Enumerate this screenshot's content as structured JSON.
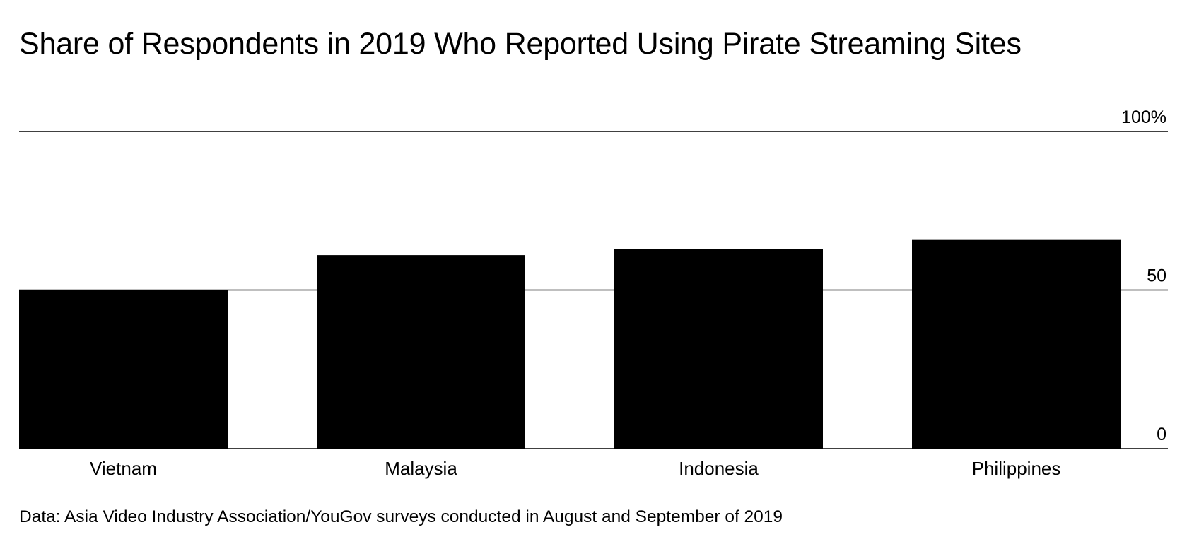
{
  "title": "Share of Respondents in 2019 Who Reported Using Pirate Streaming Sites",
  "source": "Data: Asia Video Industry Association/YouGov surveys conducted in August and September of 2019",
  "chart_data": {
    "type": "bar",
    "title": "Share of Respondents in 2019 Who Reported Using Pirate Streaming Sites",
    "xlabel": "",
    "ylabel": "",
    "categories": [
      "Vietnam",
      "Malaysia",
      "Indonesia",
      "Philippines"
    ],
    "values": [
      50,
      61,
      63,
      66
    ],
    "ylim": [
      0,
      100
    ],
    "yticks": [
      {
        "value": 0,
        "label": "0"
      },
      {
        "value": 50,
        "label": "50"
      },
      {
        "value": 100,
        "label": "100%"
      }
    ],
    "grid": true,
    "bar_color": "#000000"
  }
}
